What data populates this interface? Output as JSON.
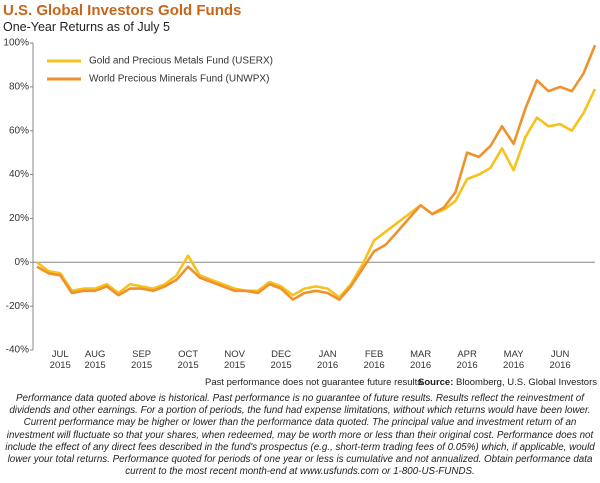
{
  "chart_data": {
    "type": "line",
    "title": "U.S. Global Investors Gold Funds",
    "subtitle": "One-Year Returns as of July 5",
    "categories": [
      null,
      null,
      "JUL\n2015",
      null,
      null,
      "AUG\n2015",
      null,
      null,
      null,
      "SEP\n2015",
      null,
      null,
      null,
      "OCT\n2015",
      null,
      null,
      null,
      "NOV\n2015",
      null,
      null,
      null,
      "DEC\n2015",
      null,
      null,
      null,
      "JAN\n2016",
      null,
      null,
      null,
      "FEB\n2016",
      null,
      null,
      null,
      "MAR\n2016",
      null,
      null,
      null,
      "APR\n2016",
      null,
      null,
      null,
      "MAY\n2016",
      null,
      null,
      null,
      "JUN\n2016",
      null,
      null,
      null
    ],
    "series": [
      {
        "name": "Gold and Precious Metals Fund (USERX)",
        "color": "#f6c21c",
        "values": [
          0,
          -4,
          -5,
          -13,
          -12,
          -12,
          -10,
          -14,
          -10,
          -11,
          -12,
          -10,
          -6,
          3,
          -6,
          -8,
          -10,
          -12,
          -13,
          -13,
          -9,
          -11,
          -15,
          -12,
          -11,
          -12,
          -16,
          -10,
          -1,
          10,
          14,
          18,
          22,
          26,
          22,
          24,
          28,
          38,
          40,
          43,
          52,
          42,
          57,
          66,
          62,
          63,
          60,
          68,
          79
        ]
      },
      {
        "name": "World Precious Minerals Fund (UNWPX)",
        "color": "#ef922e",
        "values": [
          -2,
          -5,
          -6,
          -14,
          -13,
          -13,
          -11,
          -15,
          -12,
          -12,
          -13,
          -11,
          -8,
          -2,
          -7,
          -9,
          -11,
          -13,
          -13,
          -14,
          -10,
          -12,
          -17,
          -14,
          -13,
          -14,
          -17,
          -11,
          -3,
          5,
          8,
          14,
          20,
          26,
          22,
          25,
          32,
          50,
          48,
          53,
          62,
          54,
          70,
          83,
          78,
          80,
          78,
          86,
          99
        ]
      }
    ],
    "ylim": [
      -40,
      100
    ],
    "yticks": [
      {
        "value": -40,
        "label": "-40%"
      },
      {
        "value": -20,
        "label": "-20%"
      },
      {
        "value": 0,
        "label": "0%"
      },
      {
        "value": 20,
        "label": "20%"
      },
      {
        "value": 40,
        "label": "40%"
      },
      {
        "value": 60,
        "label": "60%"
      },
      {
        "value": 80,
        "label": "80%"
      },
      {
        "value": 100,
        "label": "100%"
      }
    ],
    "grid": false,
    "legend": "top-left",
    "note": "Past performance does not guarantee future results.",
    "source_label": "Source:",
    "source": "Bloomberg, U.S. Global Investors",
    "disclaimer": "Performance data quoted above is historical. Past performance is no guarantee of future results. Results reflect the reinvestment of dividends and other earnings. For a portion of periods, the fund had expense limitations, without which returns would have been lower. Current performance may be higher or lower than the performance data quoted. The principal value and investment return of an investment will fluctuate so that your shares, when redeemed, may be worth more or less than their original cost. Performance does not include the effect of any direct fees described in the fund's prospectus (e.g., short-term trading fees of 0.05%) which, if applicable, would lower your total returns. Performance quoted for periods of one year or less is cumulative and not annualized. Obtain performance data current to the most recent month-end at www.usfunds.com or 1-800-US-FUNDS."
  }
}
